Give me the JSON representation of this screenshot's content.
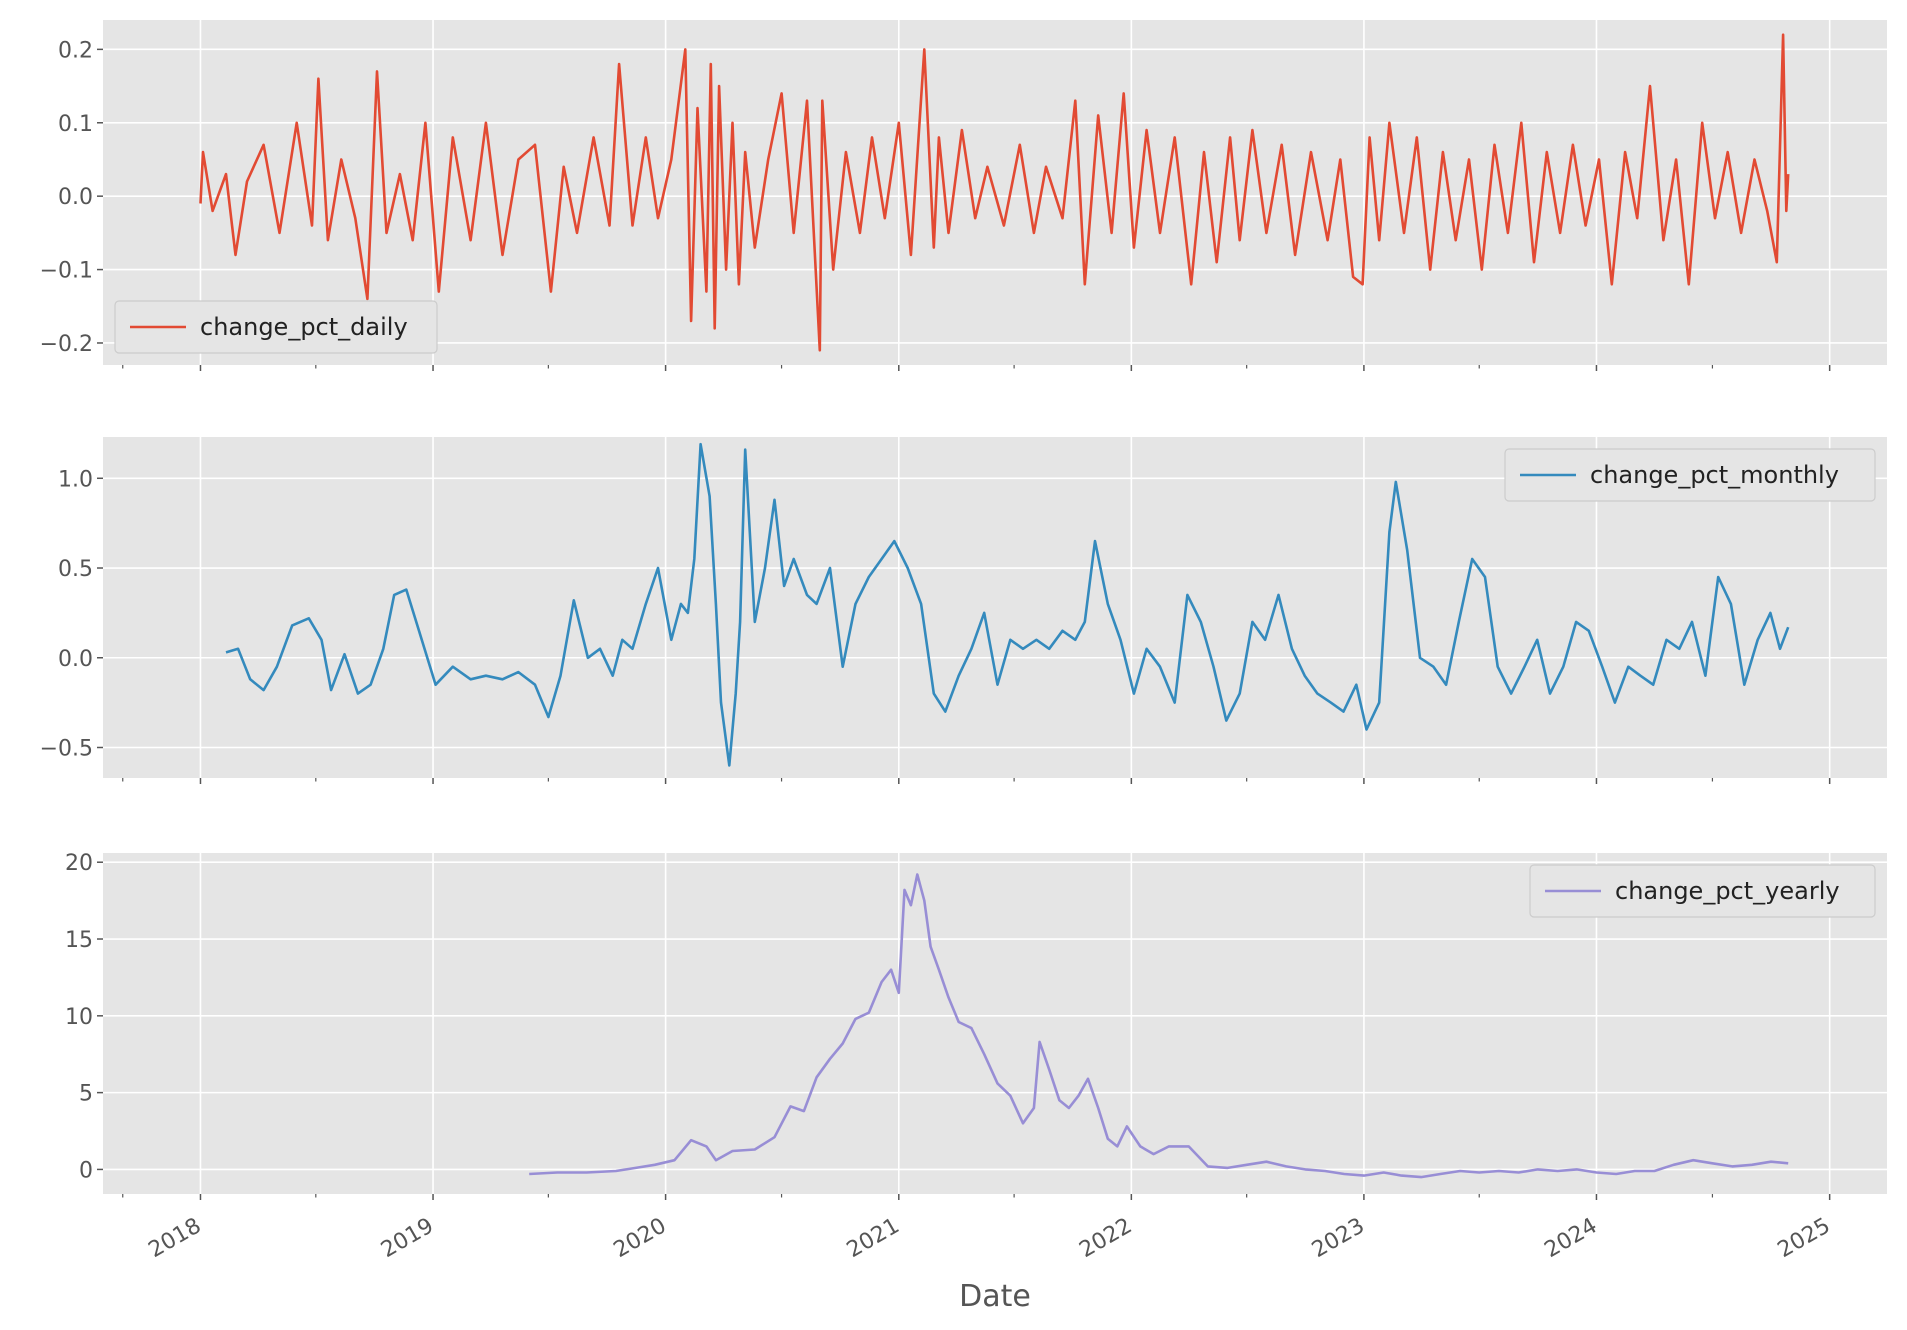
{
  "xlabel": "Date",
  "x_ticks": [
    "2018",
    "2019",
    "2020",
    "2021",
    "2022",
    "2023",
    "2024",
    "2025"
  ],
  "colors": {
    "background": "#E5E5E5",
    "grid": "#FFFFFF",
    "daily": "#E24A33",
    "monthly": "#348ABD",
    "yearly": "#988ED5"
  },
  "chart_data": [
    {
      "type": "line",
      "x_range": [
        "2017-08-01",
        "2025-04-01"
      ],
      "ylim": [
        -0.23,
        0.24
      ],
      "y_ticks": [
        -0.2,
        -0.1,
        0.0,
        0.1,
        0.2
      ],
      "y_tick_labels": [
        "−0.2",
        "−0.1",
        "0.0",
        "0.1",
        "0.2"
      ],
      "legend_position": "lower-left",
      "grid": true,
      "series": [
        {
          "name": "change_pct_daily",
          "color": "#E24A33",
          "x": [
            "2018-01-01",
            "2018-01-05",
            "2018-01-20",
            "2018-02-10",
            "2018-02-25",
            "2018-03-15",
            "2018-04-10",
            "2018-05-05",
            "2018-06-01",
            "2018-06-25",
            "2018-07-05",
            "2018-07-20",
            "2018-08-10",
            "2018-09-01",
            "2018-09-20",
            "2018-10-05",
            "2018-10-20",
            "2018-11-10",
            "2018-11-30",
            "2018-12-20",
            "2019-01-10",
            "2019-02-01",
            "2019-03-01",
            "2019-03-25",
            "2019-04-20",
            "2019-05-15",
            "2019-06-10",
            "2019-07-05",
            "2019-07-25",
            "2019-08-15",
            "2019-09-10",
            "2019-10-05",
            "2019-10-20",
            "2019-11-10",
            "2019-12-01",
            "2019-12-20",
            "2020-01-10",
            "2020-02-01",
            "2020-02-10",
            "2020-02-20",
            "2020-03-05",
            "2020-03-12",
            "2020-03-18",
            "2020-03-25",
            "2020-04-05",
            "2020-04-15",
            "2020-04-25",
            "2020-05-05",
            "2020-05-20",
            "2020-06-10",
            "2020-07-01",
            "2020-07-20",
            "2020-08-10",
            "2020-08-30",
            "2020-09-03",
            "2020-09-20",
            "2020-10-10",
            "2020-11-01",
            "2020-11-20",
            "2020-12-10",
            "2021-01-01",
            "2021-01-20",
            "2021-02-10",
            "2021-02-25",
            "2021-03-05",
            "2021-03-20",
            "2021-04-10",
            "2021-05-01",
            "2021-05-20",
            "2021-06-15",
            "2021-07-10",
            "2021-08-01",
            "2021-08-20",
            "2021-09-15",
            "2021-10-05",
            "2021-10-20",
            "2021-11-10",
            "2021-12-01",
            "2021-12-20",
            "2022-01-05",
            "2022-01-25",
            "2022-02-15",
            "2022-03-10",
            "2022-04-05",
            "2022-04-25",
            "2022-05-15",
            "2022-06-05",
            "2022-06-20",
            "2022-07-10",
            "2022-08-01",
            "2022-08-25",
            "2022-09-15",
            "2022-10-10",
            "2022-11-05",
            "2022-11-25",
            "2022-12-15",
            "2022-12-30",
            "2023-01-10",
            "2023-01-25",
            "2023-02-10",
            "2023-03-05",
            "2023-03-25",
            "2023-04-15",
            "2023-05-05",
            "2023-05-25",
            "2023-06-15",
            "2023-07-05",
            "2023-07-25",
            "2023-08-15",
            "2023-09-05",
            "2023-09-25",
            "2023-10-15",
            "2023-11-05",
            "2023-11-25",
            "2023-12-15",
            "2024-01-05",
            "2024-01-25",
            "2024-02-15",
            "2024-03-05",
            "2024-03-25",
            "2024-04-15",
            "2024-05-05",
            "2024-05-25",
            "2024-06-15",
            "2024-07-05",
            "2024-07-25",
            "2024-08-15",
            "2024-09-05",
            "2024-09-25",
            "2024-10-10",
            "2024-10-20",
            "2024-10-25",
            "2024-10-28"
          ],
          "y": [
            -0.01,
            0.06,
            -0.02,
            0.03,
            -0.08,
            0.02,
            0.07,
            -0.05,
            0.1,
            -0.04,
            0.16,
            -0.06,
            0.05,
            -0.03,
            -0.14,
            0.17,
            -0.05,
            0.03,
            -0.06,
            0.1,
            -0.13,
            0.08,
            -0.06,
            0.1,
            -0.08,
            0.05,
            0.07,
            -0.13,
            0.04,
            -0.05,
            0.08,
            -0.04,
            0.18,
            -0.04,
            0.08,
            -0.03,
            0.05,
            0.2,
            -0.17,
            0.12,
            -0.13,
            0.18,
            -0.18,
            0.15,
            -0.1,
            0.1,
            -0.12,
            0.06,
            -0.07,
            0.05,
            0.14,
            -0.05,
            0.13,
            -0.21,
            0.13,
            -0.1,
            0.06,
            -0.05,
            0.08,
            -0.03,
            0.1,
            -0.08,
            0.2,
            -0.07,
            0.08,
            -0.05,
            0.09,
            -0.03,
            0.04,
            -0.04,
            0.07,
            -0.05,
            0.04,
            -0.03,
            0.13,
            -0.12,
            0.11,
            -0.05,
            0.14,
            -0.07,
            0.09,
            -0.05,
            0.08,
            -0.12,
            0.06,
            -0.09,
            0.08,
            -0.06,
            0.09,
            -0.05,
            0.07,
            -0.08,
            0.06,
            -0.06,
            0.05,
            -0.11,
            -0.12,
            0.08,
            -0.06,
            0.1,
            -0.05,
            0.08,
            -0.1,
            0.06,
            -0.06,
            0.05,
            -0.1,
            0.07,
            -0.05,
            0.1,
            -0.09,
            0.06,
            -0.05,
            0.07,
            -0.04,
            0.05,
            -0.12,
            0.06,
            -0.03,
            0.15,
            -0.06,
            0.05,
            -0.12,
            0.1,
            -0.03,
            0.06,
            -0.05,
            0.05,
            -0.02,
            -0.09,
            0.22,
            -0.02,
            0.03
          ]
        }
      ]
    },
    {
      "type": "line",
      "x_range": [
        "2017-08-01",
        "2025-04-01"
      ],
      "ylim": [
        -0.67,
        1.23
      ],
      "y_ticks": [
        -0.5,
        0.0,
        0.5,
        1.0
      ],
      "y_tick_labels": [
        "−0.5",
        "0.0",
        "0.5",
        "1.0"
      ],
      "legend_position": "upper-right",
      "grid": true,
      "series": [
        {
          "name": "change_pct_monthly",
          "color": "#348ABD",
          "x": [
            "2018-02-10",
            "2018-03-01",
            "2018-03-20",
            "2018-04-10",
            "2018-05-01",
            "2018-05-25",
            "2018-06-20",
            "2018-07-10",
            "2018-07-25",
            "2018-08-15",
            "2018-09-05",
            "2018-09-25",
            "2018-10-15",
            "2018-11-01",
            "2018-11-20",
            "2018-12-10",
            "2019-01-05",
            "2019-02-01",
            "2019-03-01",
            "2019-03-25",
            "2019-04-20",
            "2019-05-15",
            "2019-06-10",
            "2019-07-01",
            "2019-07-20",
            "2019-08-10",
            "2019-09-01",
            "2019-09-20",
            "2019-10-10",
            "2019-10-25",
            "2019-11-10",
            "2019-12-01",
            "2019-12-20",
            "2020-01-10",
            "2020-01-25",
            "2020-02-05",
            "2020-02-15",
            "2020-02-25",
            "2020-03-10",
            "2020-03-20",
            "2020-03-28",
            "2020-04-10",
            "2020-04-20",
            "2020-04-27",
            "2020-05-05",
            "2020-05-20",
            "2020-06-05",
            "2020-06-20",
            "2020-07-05",
            "2020-07-20",
            "2020-08-10",
            "2020-08-25",
            "2020-09-15",
            "2020-10-05",
            "2020-10-25",
            "2020-11-15",
            "2020-12-05",
            "2020-12-25",
            "2021-01-15",
            "2021-02-05",
            "2021-02-25",
            "2021-03-15",
            "2021-04-05",
            "2021-04-25",
            "2021-05-15",
            "2021-06-05",
            "2021-06-25",
            "2021-07-15",
            "2021-08-05",
            "2021-08-25",
            "2021-09-15",
            "2021-10-05",
            "2021-10-20",
            "2021-11-05",
            "2021-11-25",
            "2021-12-15",
            "2022-01-05",
            "2022-01-25",
            "2022-02-15",
            "2022-03-10",
            "2022-03-30",
            "2022-04-20",
            "2022-05-10",
            "2022-05-30",
            "2022-06-20",
            "2022-07-10",
            "2022-07-30",
            "2022-08-20",
            "2022-09-10",
            "2022-09-30",
            "2022-10-20",
            "2022-11-10",
            "2022-11-30",
            "2022-12-20",
            "2023-01-05",
            "2023-01-25",
            "2023-02-10",
            "2023-02-20",
            "2023-03-10",
            "2023-03-30",
            "2023-04-20",
            "2023-05-10",
            "2023-05-30",
            "2023-06-20",
            "2023-07-10",
            "2023-07-30",
            "2023-08-20",
            "2023-09-10",
            "2023-09-30",
            "2023-10-20",
            "2023-11-10",
            "2023-11-30",
            "2023-12-20",
            "2024-01-10",
            "2024-01-30",
            "2024-02-20",
            "2024-03-10",
            "2024-03-30",
            "2024-04-20",
            "2024-05-10",
            "2024-05-30",
            "2024-06-20",
            "2024-07-10",
            "2024-07-30",
            "2024-08-20",
            "2024-09-10",
            "2024-09-30",
            "2024-10-15",
            "2024-10-28"
          ],
          "y": [
            0.03,
            0.05,
            -0.12,
            -0.18,
            -0.05,
            0.18,
            0.22,
            0.1,
            -0.18,
            0.02,
            -0.2,
            -0.15,
            0.05,
            0.35,
            0.38,
            0.15,
            -0.15,
            -0.05,
            -0.12,
            -0.1,
            -0.12,
            -0.08,
            -0.15,
            -0.33,
            -0.1,
            0.32,
            0.0,
            0.05,
            -0.1,
            0.1,
            0.05,
            0.3,
            0.5,
            0.1,
            0.3,
            0.25,
            0.55,
            1.19,
            0.9,
            0.3,
            -0.25,
            -0.6,
            -0.2,
            0.2,
            1.16,
            0.2,
            0.5,
            0.88,
            0.4,
            0.55,
            0.35,
            0.3,
            0.5,
            -0.05,
            0.3,
            0.45,
            0.55,
            0.65,
            0.5,
            0.3,
            -0.2,
            -0.3,
            -0.1,
            0.05,
            0.25,
            -0.15,
            0.1,
            0.05,
            0.1,
            0.05,
            0.15,
            0.1,
            0.2,
            0.65,
            0.3,
            0.1,
            -0.2,
            0.05,
            -0.05,
            -0.25,
            0.35,
            0.2,
            -0.05,
            -0.35,
            -0.2,
            0.2,
            0.1,
            0.35,
            0.05,
            -0.1,
            -0.2,
            -0.25,
            -0.3,
            -0.15,
            -0.4,
            -0.25,
            0.7,
            0.98,
            0.6,
            0.0,
            -0.05,
            -0.15,
            0.2,
            0.55,
            0.45,
            -0.05,
            -0.2,
            -0.05,
            0.1,
            -0.2,
            -0.05,
            0.2,
            0.15,
            -0.05,
            -0.25,
            -0.05,
            -0.1,
            -0.15,
            0.1,
            0.05,
            0.2,
            -0.1,
            0.45,
            0.3,
            -0.15,
            0.1,
            0.25,
            0.05,
            0.17
          ]
        }
      ]
    },
    {
      "type": "line",
      "x_range": [
        "2017-08-01",
        "2025-04-01"
      ],
      "ylim": [
        -1.6,
        20.6
      ],
      "y_ticks": [
        0,
        5,
        10,
        15,
        20
      ],
      "y_tick_labels": [
        "0",
        "5",
        "10",
        "15",
        "20"
      ],
      "legend_position": "upper-right",
      "grid": true,
      "series": [
        {
          "name": "change_pct_yearly",
          "color": "#988ED5",
          "x": [
            "2019-06-01",
            "2019-07-15",
            "2019-08-30",
            "2019-10-15",
            "2019-11-15",
            "2019-12-15",
            "2020-01-15",
            "2020-02-10",
            "2020-03-05",
            "2020-03-20",
            "2020-04-15",
            "2020-05-20",
            "2020-06-20",
            "2020-07-15",
            "2020-08-05",
            "2020-08-25",
            "2020-09-15",
            "2020-10-05",
            "2020-10-25",
            "2020-11-15",
            "2020-12-05",
            "2020-12-20",
            "2021-01-01",
            "2021-01-10",
            "2021-01-20",
            "2021-01-30",
            "2021-02-10",
            "2021-02-20",
            "2021-03-05",
            "2021-03-20",
            "2021-04-05",
            "2021-04-25",
            "2021-05-15",
            "2021-06-05",
            "2021-06-25",
            "2021-07-15",
            "2021-08-01",
            "2021-08-10",
            "2021-08-25",
            "2021-09-10",
            "2021-09-25",
            "2021-10-10",
            "2021-10-25",
            "2021-11-10",
            "2021-11-25",
            "2021-12-10",
            "2021-12-25",
            "2022-01-15",
            "2022-02-05",
            "2022-03-01",
            "2022-04-01",
            "2022-05-01",
            "2022-06-01",
            "2022-07-01",
            "2022-08-01",
            "2022-09-01",
            "2022-10-01",
            "2022-11-01",
            "2022-12-01",
            "2023-01-01",
            "2023-02-01",
            "2023-03-01",
            "2023-04-01",
            "2023-05-01",
            "2023-06-01",
            "2023-07-01",
            "2023-08-01",
            "2023-09-01",
            "2023-10-01",
            "2023-11-01",
            "2023-12-01",
            "2024-01-01",
            "2024-02-01",
            "2024-03-01",
            "2024-04-01",
            "2024-05-01",
            "2024-06-01",
            "2024-07-01",
            "2024-08-01",
            "2024-09-01",
            "2024-10-01",
            "2024-10-28"
          ],
          "y": [
            -0.3,
            -0.2,
            -0.2,
            -0.1,
            0.1,
            0.3,
            0.6,
            1.9,
            1.5,
            0.6,
            1.2,
            1.3,
            2.1,
            4.1,
            3.8,
            6.0,
            7.2,
            8.2,
            9.8,
            10.2,
            12.2,
            13.0,
            11.5,
            18.2,
            17.2,
            19.2,
            17.5,
            14.5,
            13.0,
            11.2,
            9.6,
            9.2,
            7.5,
            5.6,
            4.8,
            3.0,
            4.0,
            8.3,
            6.5,
            4.5,
            4.0,
            4.8,
            5.9,
            4.0,
            2.0,
            1.5,
            2.8,
            1.5,
            1.0,
            1.5,
            1.5,
            0.2,
            0.1,
            0.3,
            0.5,
            0.2,
            0.0,
            -0.1,
            -0.3,
            -0.4,
            -0.2,
            -0.4,
            -0.5,
            -0.3,
            -0.1,
            -0.2,
            -0.1,
            -0.2,
            0.0,
            -0.1,
            0.0,
            -0.2,
            -0.3,
            -0.1,
            -0.1,
            0.3,
            0.6,
            0.4,
            0.2,
            0.3,
            0.5,
            0.4
          ]
        }
      ]
    }
  ]
}
